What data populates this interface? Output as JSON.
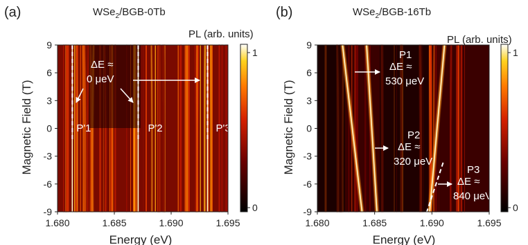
{
  "chart_data": [
    {
      "type": "heatmap",
      "panel_label": "(a)",
      "title": "WSe2/BGB-0Tb",
      "title_main": "WSe",
      "title_sub": "2",
      "title_rest": "/BGB-0Tb",
      "colorbar_label": "PL (arb. units)",
      "colorbar_ticks": [
        "1",
        "0"
      ],
      "colorbar_range": [
        0,
        1
      ],
      "xlabel": "Energy (eV)",
      "ylabel": "Magnetic Field (T)",
      "xlim": [
        1.68,
        1.695
      ],
      "ylim": [
        -9,
        9
      ],
      "xticks": [
        1.68,
        1.685,
        1.69,
        1.695
      ],
      "xtick_labels": [
        "1.680",
        "1.685",
        "1.690",
        "1.695"
      ],
      "yticks": [
        9,
        6,
        3,
        0,
        -3,
        -6,
        -9
      ],
      "ytick_labels": [
        "9",
        "6",
        "3",
        "0",
        "-3",
        "-6",
        "-9"
      ],
      "peaks": [
        {
          "name": "P'1",
          "energy_top": 1.6813,
          "energy_bottom": 1.6813
        },
        {
          "name": "P'2",
          "energy_top": 1.6871,
          "energy_bottom": 1.6871
        },
        {
          "name": "P'3",
          "energy_top": 1.6932,
          "energy_bottom": 1.6932
        }
      ],
      "annotations": [
        {
          "line1": "ΔE ≈",
          "line2": "0 μeV"
        }
      ]
    },
    {
      "type": "heatmap",
      "panel_label": "(b)",
      "title": "WSe2/BGB-16Tb",
      "title_main": "WSe",
      "title_sub": "2",
      "title_rest": "/BGB-16Tb",
      "colorbar_label": "PL (arb. units)",
      "colorbar_ticks": [
        "1",
        "0"
      ],
      "colorbar_range": [
        0,
        1
      ],
      "xlabel": "Energy (eV)",
      "ylabel": "Magnetic Field (T)",
      "xlim": [
        1.68,
        1.695
      ],
      "ylim": [
        -9,
        9
      ],
      "xticks": [
        1.68,
        1.685,
        1.69,
        1.695
      ],
      "xtick_labels": [
        "1.680",
        "1.685",
        "1.690",
        "1.695"
      ],
      "yticks": [
        9,
        6,
        3,
        0,
        -3,
        -6,
        -9
      ],
      "ytick_labels": [
        "9",
        "6",
        "3",
        "0",
        "-3",
        "-6",
        "-9"
      ],
      "peaks": [
        {
          "name": "P1",
          "energy_top": 1.6822,
          "energy_bottom": 1.6839
        },
        {
          "name": "P2",
          "energy_top": 1.6843,
          "energy_bottom": 1.6852
        },
        {
          "name": "P3",
          "energy_top": 1.6911,
          "energy_bottom": 1.6898
        }
      ],
      "annotations": [
        {
          "line0": "P1",
          "line1": "ΔE ≈",
          "line2": "530 μeV"
        },
        {
          "line0": "P2",
          "line1": "ΔE ≈",
          "line2": "320 μeV"
        },
        {
          "line0": "P3",
          "line1": "ΔE ≈",
          "line2": "840 μeV"
        }
      ]
    }
  ]
}
